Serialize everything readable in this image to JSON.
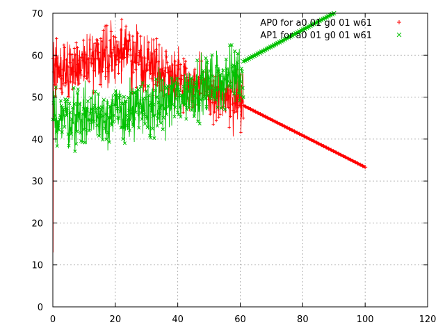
{
  "chart_data": {
    "type": "line",
    "title": "",
    "xlabel": "",
    "ylabel": "",
    "xlim": [
      0,
      120
    ],
    "ylim": [
      0,
      70
    ],
    "x_ticks": [
      0,
      20,
      40,
      60,
      80,
      100,
      120
    ],
    "y_ticks": [
      0,
      10,
      20,
      30,
      40,
      50,
      60,
      70
    ],
    "grid": true,
    "legend_position": "top-right",
    "series": [
      {
        "name": "AP0 for a0 01 g0 01 w61",
        "color": "#ff0000",
        "marker": "plus",
        "noisy_segment": {
          "x_start": 0,
          "x_end": 61,
          "level_profile": [
            [
              0,
              56
            ],
            [
              5,
              57
            ],
            [
              15,
              60
            ],
            [
              22,
              61
            ],
            [
              30,
              58
            ],
            [
              40,
              55
            ],
            [
              50,
              51
            ],
            [
              57,
              49
            ],
            [
              61,
              48
            ]
          ],
          "spread": 6,
          "min_observed": 13,
          "max_observed": 70
        },
        "linear_segment": {
          "x": [
            61,
            100
          ],
          "y": [
            48,
            33.3
          ]
        }
      },
      {
        "name": "AP1 for a0 01 g0 01 w61",
        "color": "#00c000",
        "marker": "cross",
        "noisy_segment": {
          "x_start": 0,
          "x_end": 61,
          "level_profile": [
            [
              0,
              46
            ],
            [
              5,
              45
            ],
            [
              15,
              46
            ],
            [
              22,
              46
            ],
            [
              30,
              47
            ],
            [
              40,
              50
            ],
            [
              50,
              53
            ],
            [
              57,
              55
            ],
            [
              61,
              56
            ]
          ],
          "spread": 6,
          "min_observed": 33,
          "max_observed": 67
        },
        "linear_segment": {
          "x": [
            61,
            90
          ],
          "y": [
            58.5,
            70
          ]
        }
      }
    ]
  }
}
